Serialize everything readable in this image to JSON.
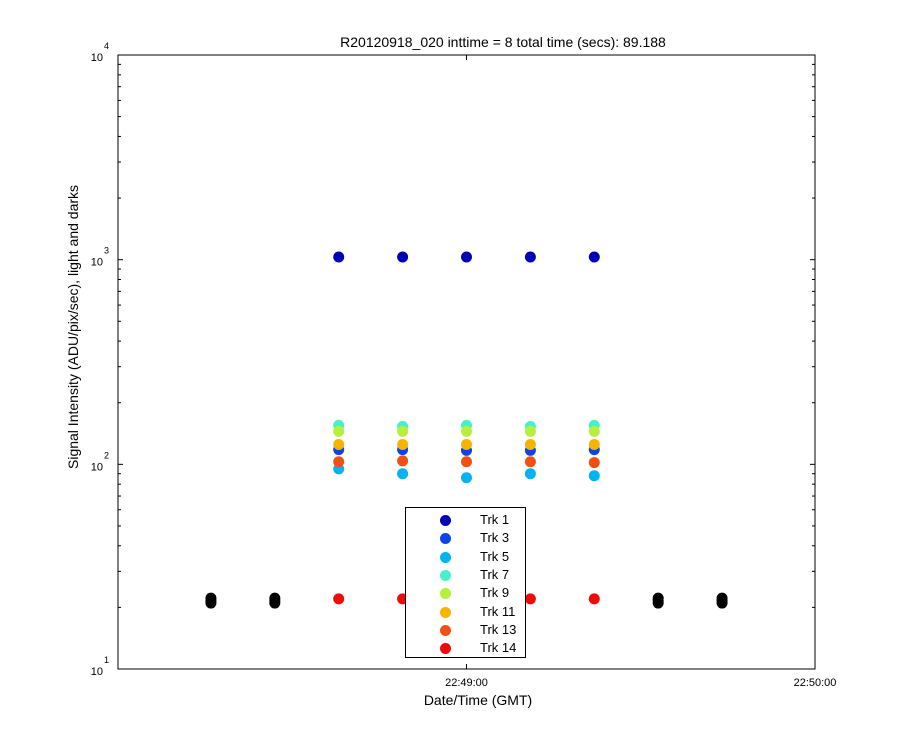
{
  "chart_data": {
    "type": "scatter",
    "title": "R20120918_020 inttime = 8 total time (secs): 89.188",
    "xlabel": "Date/Time (GMT)",
    "ylabel": "Signal Intensity (ADU/pix/sec), light and darks",
    "yscale": "log",
    "ylim": [
      10,
      10000
    ],
    "xlim": [
      "22:48:00",
      "22:50:00"
    ],
    "x_ticks": [
      "22:49:00",
      "22:50:00"
    ],
    "y_tick_base": "10",
    "y_tick_exponents": [
      "1",
      "2",
      "3",
      "4"
    ],
    "grid": false,
    "legend_position": "lower-center",
    "series": [
      {
        "name": "Trk 1",
        "color": "#0000b4",
        "x": [
          "22:48:38",
          "22:48:49",
          "22:49:00",
          "22:49:11",
          "22:49:22"
        ],
        "y": [
          1030,
          1030,
          1030,
          1030,
          1030
        ]
      },
      {
        "name": "Trk 3",
        "color": "#0a46e6",
        "x": [
          "22:48:38",
          "22:48:49",
          "22:49:00",
          "22:49:11",
          "22:49:22"
        ],
        "y": [
          118,
          118,
          117,
          117,
          118
        ]
      },
      {
        "name": "Trk 5",
        "color": "#00b4f0",
        "x": [
          "22:48:38",
          "22:48:49",
          "22:49:00",
          "22:49:11",
          "22:49:22"
        ],
        "y": [
          95,
          90,
          86,
          90,
          88
        ]
      },
      {
        "name": "Trk 7",
        "color": "#46f0c8",
        "x": [
          "22:48:38",
          "22:48:49",
          "22:49:00",
          "22:49:11",
          "22:49:22"
        ],
        "y": [
          155,
          153,
          155,
          153,
          155
        ]
      },
      {
        "name": "Trk 9",
        "color": "#b4f03c",
        "x": [
          "22:48:38",
          "22:48:49",
          "22:49:00",
          "22:49:11",
          "22:49:22"
        ],
        "y": [
          145,
          145,
          145,
          145,
          145
        ]
      },
      {
        "name": "Trk 11",
        "color": "#f5b400",
        "x": [
          "22:48:38",
          "22:48:49",
          "22:49:00",
          "22:49:11",
          "22:49:22"
        ],
        "y": [
          125,
          125,
          125,
          125,
          125
        ]
      },
      {
        "name": "Trk 13",
        "color": "#f05014",
        "x": [
          "22:48:38",
          "22:48:49",
          "22:49:00",
          "22:49:11",
          "22:49:22"
        ],
        "y": [
          103,
          104,
          103,
          103,
          102
        ]
      },
      {
        "name": "Trk 14",
        "color": "#f00a0a",
        "x": [
          "22:48:38",
          "22:48:49",
          "22:49:00",
          "22:49:11",
          "22:49:22"
        ],
        "y": [
          22,
          22,
          22,
          22,
          22
        ]
      },
      {
        "color": "#000000",
        "x": [
          "22:48:16",
          "22:48:16",
          "22:48:16",
          "22:48:27",
          "22:48:27",
          "22:48:27",
          "22:49:33",
          "22:49:33",
          "22:49:33",
          "22:49:44",
          "22:49:44",
          "22:49:44"
        ],
        "y": [
          21,
          21.6,
          22.2,
          21,
          21.6,
          22.2,
          21,
          21.6,
          22.2,
          21,
          21.6,
          22.2
        ]
      }
    ]
  }
}
